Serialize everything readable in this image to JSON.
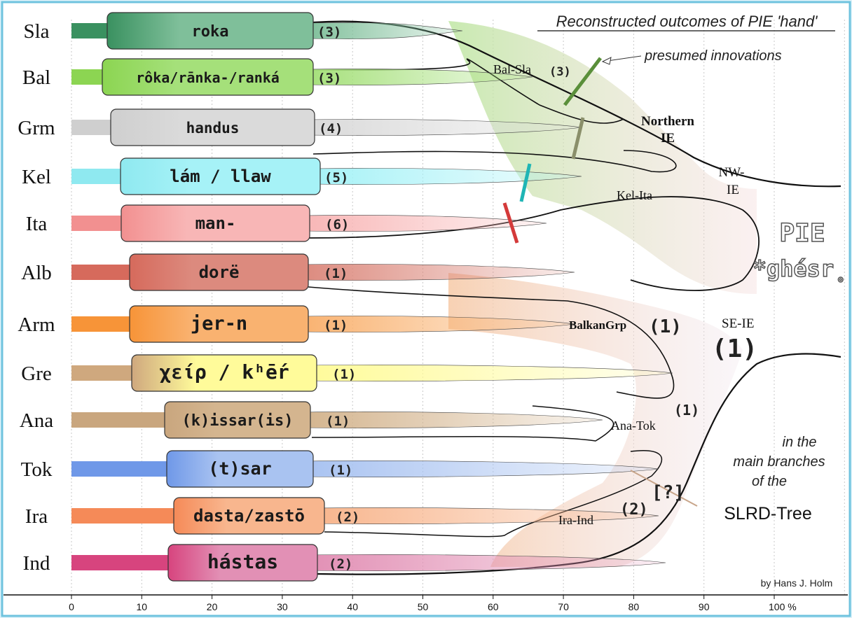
{
  "title": "Reconstructed outcomes of PIE 'hand'",
  "innovations_label": "presumed innovations",
  "root": {
    "line1": "PIE",
    "line2": "*ghésr̥"
  },
  "subtitle": {
    "line1": "in the",
    "line2": "main branches",
    "line3": "of the",
    "line4": "SLRD-Tree"
  },
  "author": "by Hans J. Holm",
  "axis_ticks": [
    "0",
    "10",
    "20",
    "30",
    "40",
    "50",
    "60",
    "70",
    "80",
    "90",
    "100 %"
  ],
  "branches": [
    {
      "code": "Sla",
      "word": "roka",
      "count": "(3)",
      "color": "#7fbf9a",
      "stub": "#3a9160"
    },
    {
      "code": "Bal",
      "word": "rôka/rānka-/ranká",
      "count": "(3)",
      "color": "#a5e07a",
      "stub": "#8cd552"
    },
    {
      "code": "Grm",
      "word": "handus",
      "count": "(4)",
      "color": "#dadada",
      "stub": "#cfcfcf"
    },
    {
      "code": "Kel",
      "word": "lám / llaw",
      "count": "(5)",
      "color": "#a6f2f7",
      "stub": "#8fe9f0"
    },
    {
      "code": "Ita",
      "word": "man-",
      "count": "(6)",
      "color": "#f8b6b6",
      "stub": "#f29090"
    },
    {
      "code": "Alb",
      "word": "dorë",
      "count": "(1)",
      "color": "#dc8a7e",
      "stub": "#d66a5c"
    },
    {
      "code": "Arm",
      "word": "jer-n",
      "count": "(1)",
      "color": "#f9b270",
      "stub": "#f79438"
    },
    {
      "code": "Gre",
      "word": "χείρ / kʰḗr",
      "count": "(1)",
      "color": "#fffb9a",
      "stub": "#cfa87e"
    },
    {
      "code": "Ana",
      "word": "(k)issar(is)",
      "count": "(1)",
      "color": "#d4b58f",
      "stub": "#c9a67e"
    },
    {
      "code": "Tok",
      "word": "(t)sar",
      "count": "(1)",
      "color": "#a9c3f1",
      "stub": "#6f98e8"
    },
    {
      "code": "Ira",
      "word": "dasta/zastō",
      "count": "(2)",
      "color": "#f8b68e",
      "stub": "#f58a58"
    },
    {
      "code": "Ind",
      "word": "hástas",
      "count": "(2)",
      "color": "#e290b5",
      "stub": "#d7447e"
    }
  ],
  "nodes": {
    "bal_sla": "Bal-Sla",
    "bal_sla_count": "(3)",
    "northern_1": "Northern",
    "northern_2": "IE",
    "nw_1": "NW-",
    "nw_2": "IE",
    "kel_ita": "Kel-Ita",
    "balkan": "BalkanGrp",
    "balkan_count": "(1)",
    "se_ie": "SE-IE",
    "se_ie_count": "(1)",
    "ana_tok": "Ana-Tok",
    "ana_tok_count": "(1)",
    "ira_ind": "Ira-Ind",
    "ira_ind_count": "(2)",
    "uncertain": "[?]"
  },
  "innovation_marks": {
    "Bal-Sla": "#5a8f3a",
    "Grm": "#8a8f6a",
    "Kel": "#1fb5b5",
    "Ita": "#d43a3a"
  }
}
